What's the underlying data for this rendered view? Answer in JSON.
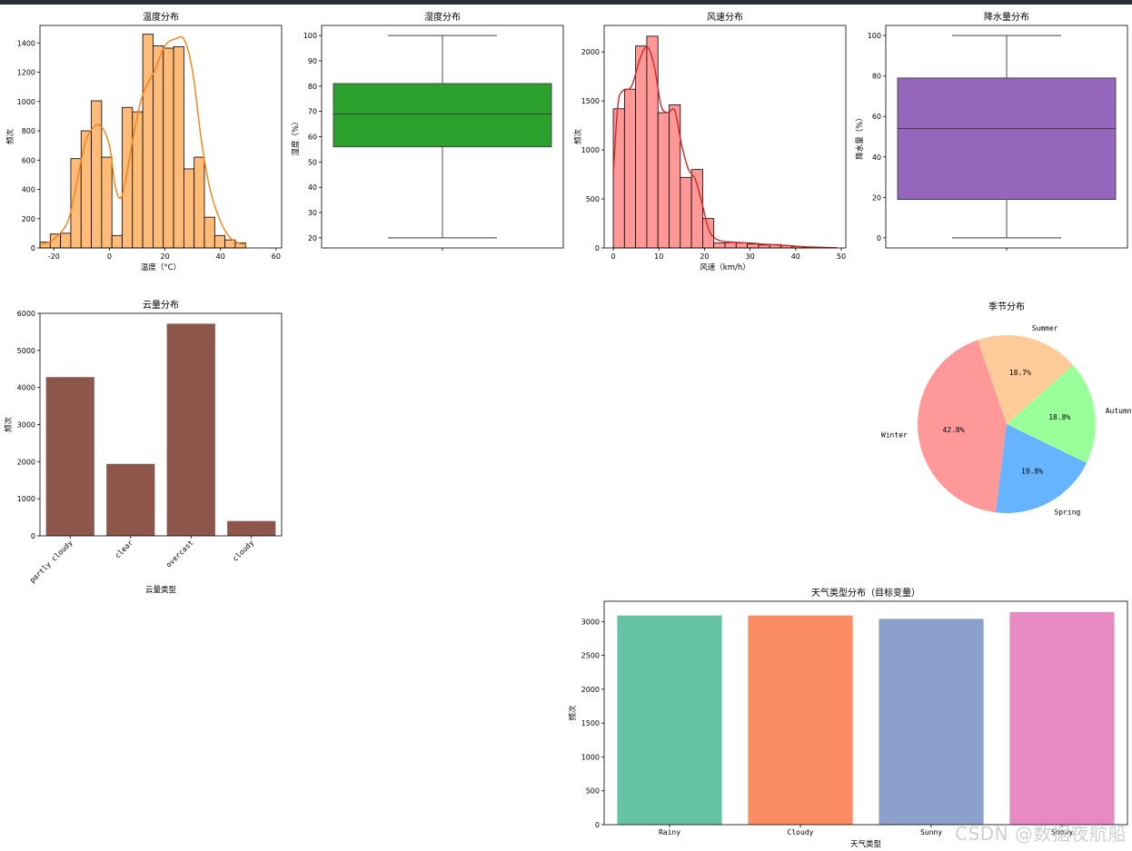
{
  "watermark": "CSDN @数据夜航船",
  "colors": {
    "temperature": "#ffbb78",
    "temperature_kde": "#ff7f0e",
    "humidity": "#2ca02c",
    "wind": "#ff9896",
    "wind_kde": "#d62728",
    "precip": "#9467bd",
    "cloud": "#8c564b"
  },
  "chart_data": [
    {
      "id": "temperature",
      "type": "histogram",
      "title": "温度分布",
      "xlabel": "温度（°C）",
      "ylabel": "频次",
      "xlim": [
        -25,
        62
      ],
      "ylim": [
        0,
        1520
      ],
      "xticks": [
        -20,
        0,
        20,
        40,
        60
      ],
      "yticks": [
        0,
        200,
        400,
        600,
        800,
        1000,
        1200,
        1400
      ],
      "bins": [
        {
          "x0": -25,
          "x1": -21.3,
          "count": 40
        },
        {
          "x0": -21.3,
          "x1": -17.6,
          "count": 95
        },
        {
          "x0": -17.6,
          "x1": -13.9,
          "count": 100
        },
        {
          "x0": -13.9,
          "x1": -10.2,
          "count": 610
        },
        {
          "x0": -10.2,
          "x1": -6.5,
          "count": 800
        },
        {
          "x0": -6.5,
          "x1": -2.8,
          "count": 1005
        },
        {
          "x0": -2.8,
          "x1": 0.9,
          "count": 620
        },
        {
          "x0": 0.9,
          "x1": 4.6,
          "count": 85
        },
        {
          "x0": 4.6,
          "x1": 8.3,
          "count": 960
        },
        {
          "x0": 8.3,
          "x1": 12.0,
          "count": 930
        },
        {
          "x0": 12.0,
          "x1": 15.7,
          "count": 1460
        },
        {
          "x0": 15.7,
          "x1": 19.4,
          "count": 1380
        },
        {
          "x0": 19.4,
          "x1": 23.1,
          "count": 1365
        },
        {
          "x0": 23.1,
          "x1": 26.8,
          "count": 1375
        },
        {
          "x0": 26.8,
          "x1": 30.5,
          "count": 540
        },
        {
          "x0": 30.5,
          "x1": 34.2,
          "count": 620
        },
        {
          "x0": 34.2,
          "x1": 37.9,
          "count": 210
        },
        {
          "x0": 37.9,
          "x1": 41.6,
          "count": 85
        },
        {
          "x0": 41.6,
          "x1": 45.3,
          "count": 55
        },
        {
          "x0": 45.3,
          "x1": 49.0,
          "count": 35
        }
      ],
      "kde": [
        {
          "x": -25,
          "y": 20
        },
        {
          "x": -20,
          "y": 60
        },
        {
          "x": -15,
          "y": 180
        },
        {
          "x": -12,
          "y": 420
        },
        {
          "x": -9,
          "y": 700
        },
        {
          "x": -6,
          "y": 820
        },
        {
          "x": -3,
          "y": 830
        },
        {
          "x": 0,
          "y": 700
        },
        {
          "x": 2,
          "y": 430
        },
        {
          "x": 4,
          "y": 340
        },
        {
          "x": 6,
          "y": 480
        },
        {
          "x": 9,
          "y": 800
        },
        {
          "x": 12,
          "y": 1050
        },
        {
          "x": 16,
          "y": 1200
        },
        {
          "x": 20,
          "y": 1380
        },
        {
          "x": 24,
          "y": 1430
        },
        {
          "x": 27,
          "y": 1420
        },
        {
          "x": 30,
          "y": 1200
        },
        {
          "x": 33,
          "y": 750
        },
        {
          "x": 36,
          "y": 420
        },
        {
          "x": 40,
          "y": 180
        },
        {
          "x": 44,
          "y": 60
        },
        {
          "x": 49,
          "y": 20
        }
      ]
    },
    {
      "id": "humidity",
      "type": "box",
      "title": "湿度分布",
      "ylabel": "湿度（%）",
      "ylim": [
        16,
        104
      ],
      "yticks": [
        20,
        30,
        40,
        50,
        60,
        70,
        80,
        90,
        100
      ],
      "box": {
        "min": 20,
        "q1": 56,
        "median": 69,
        "q3": 81,
        "max": 100
      }
    },
    {
      "id": "wind",
      "type": "histogram",
      "title": "风速分布",
      "xlabel": "风速（km/h）",
      "ylabel": "频次",
      "xlim": [
        -2,
        51
      ],
      "ylim": [
        0,
        2270
      ],
      "xticks": [
        0,
        10,
        20,
        30,
        40,
        50
      ],
      "yticks": [
        0,
        500,
        1000,
        1500,
        2000
      ],
      "bins": [
        {
          "x0": 0,
          "x1": 2.45,
          "count": 1420
        },
        {
          "x0": 2.45,
          "x1": 4.9,
          "count": 1620
        },
        {
          "x0": 4.9,
          "x1": 7.35,
          "count": 2060
        },
        {
          "x0": 7.35,
          "x1": 9.8,
          "count": 2160
        },
        {
          "x0": 9.8,
          "x1": 12.25,
          "count": 1380
        },
        {
          "x0": 12.25,
          "x1": 14.7,
          "count": 1460
        },
        {
          "x0": 14.7,
          "x1": 17.15,
          "count": 720
        },
        {
          "x0": 17.15,
          "x1": 19.6,
          "count": 800
        },
        {
          "x0": 19.6,
          "x1": 22.05,
          "count": 300
        },
        {
          "x0": 22.05,
          "x1": 24.5,
          "count": 50
        },
        {
          "x0": 24.5,
          "x1": 26.95,
          "count": 55
        },
        {
          "x0": 26.95,
          "x1": 29.4,
          "count": 50
        },
        {
          "x0": 29.4,
          "x1": 31.85,
          "count": 40
        },
        {
          "x0": 31.85,
          "x1": 34.3,
          "count": 30
        },
        {
          "x0": 34.3,
          "x1": 36.75,
          "count": 35
        },
        {
          "x0": 36.75,
          "x1": 39.2,
          "count": 25
        },
        {
          "x0": 39.2,
          "x1": 41.65,
          "count": 15
        },
        {
          "x0": 41.65,
          "x1": 44.1,
          "count": 8
        },
        {
          "x0": 44.1,
          "x1": 46.55,
          "count": 5
        },
        {
          "x0": 46.55,
          "x1": 49.0,
          "count": 3
        }
      ],
      "kde": [
        {
          "x": 0,
          "y": 760
        },
        {
          "x": 1,
          "y": 1450
        },
        {
          "x": 2,
          "y": 1600
        },
        {
          "x": 4,
          "y": 1650
        },
        {
          "x": 6,
          "y": 1950
        },
        {
          "x": 7.5,
          "y": 2050
        },
        {
          "x": 9,
          "y": 1850
        },
        {
          "x": 10.5,
          "y": 1450
        },
        {
          "x": 12,
          "y": 1380
        },
        {
          "x": 13.5,
          "y": 1400
        },
        {
          "x": 15,
          "y": 1050
        },
        {
          "x": 16.5,
          "y": 800
        },
        {
          "x": 18,
          "y": 700
        },
        {
          "x": 19.5,
          "y": 450
        },
        {
          "x": 21,
          "y": 180
        },
        {
          "x": 23,
          "y": 80
        },
        {
          "x": 26,
          "y": 60
        },
        {
          "x": 30,
          "y": 50
        },
        {
          "x": 34,
          "y": 35
        },
        {
          "x": 38,
          "y": 25
        },
        {
          "x": 42,
          "y": 12
        },
        {
          "x": 46,
          "y": 6
        },
        {
          "x": 49,
          "y": 2
        }
      ]
    },
    {
      "id": "precip",
      "type": "box",
      "title": "降水量分布",
      "ylabel": "降水量（%）",
      "ylim": [
        -5,
        105
      ],
      "yticks": [
        0,
        20,
        40,
        60,
        80,
        100
      ],
      "box": {
        "min": 0,
        "q1": 19,
        "median": 54,
        "q3": 79,
        "max": 100
      }
    },
    {
      "id": "cloud",
      "type": "bar",
      "title": "云量分布",
      "xlabel": "云量类型",
      "ylabel": "频次",
      "ylim": [
        0,
        6000
      ],
      "yticks": [
        0,
        1000,
        2000,
        3000,
        4000,
        5000,
        6000
      ],
      "categories": [
        "partly cloudy",
        "clear",
        "overcast",
        "cloudy"
      ],
      "values": [
        4280,
        1940,
        5720,
        400
      ]
    },
    {
      "id": "season",
      "type": "pie",
      "title": "季节分布",
      "slices": [
        {
          "label": "Winter",
          "value": 42.8,
          "pct": "42.8%",
          "color": "#ff9999"
        },
        {
          "label": "Spring",
          "value": 19.8,
          "pct": "19.8%",
          "color": "#66b3ff"
        },
        {
          "label": "Autumn",
          "value": 18.8,
          "pct": "18.8%",
          "color": "#99ff99"
        },
        {
          "label": "Summer",
          "value": 18.7,
          "pct": "18.7%",
          "color": "#ffcc99"
        }
      ]
    },
    {
      "id": "weather",
      "type": "bar",
      "title": "天气类型分布（目标变量）",
      "xlabel": "天气类型",
      "ylabel": "频次",
      "ylim": [
        0,
        3300
      ],
      "yticks": [
        0,
        500,
        1000,
        1500,
        2000,
        2500,
        3000
      ],
      "categories": [
        "Rainy",
        "Cloudy",
        "Sunny",
        "Snowy"
      ],
      "values": [
        3090,
        3090,
        3040,
        3140
      ],
      "colors": [
        "#66c2a5",
        "#fc8d62",
        "#8da0cb",
        "#e78ac3"
      ]
    }
  ]
}
